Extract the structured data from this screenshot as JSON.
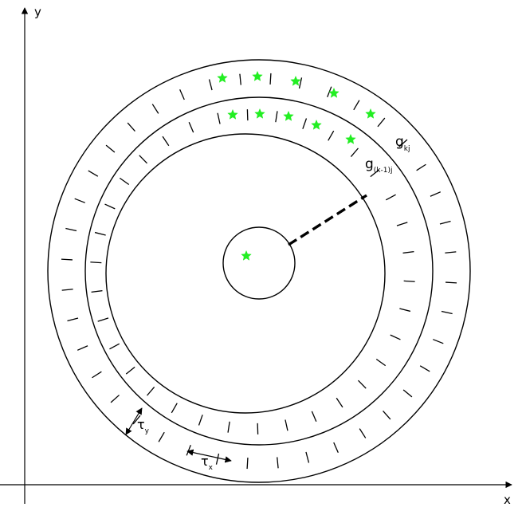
{
  "axes": {
    "x_label": "x",
    "y_label": "y"
  },
  "labels": {
    "outer_ring": {
      "main": "g",
      "sub": "kj"
    },
    "inner_ring": {
      "main": "g",
      "sub": "(k-1)j"
    },
    "tau_y": {
      "main": "τ",
      "sub": "y"
    },
    "tau_x": {
      "main": "τ",
      "sub": "x"
    }
  },
  "colors": {
    "star": "#22ee22",
    "line": "#000000",
    "background": "#ffffff"
  },
  "icons": {
    "marker": "green-star-icon",
    "arrow": "double-arrow-icon"
  }
}
